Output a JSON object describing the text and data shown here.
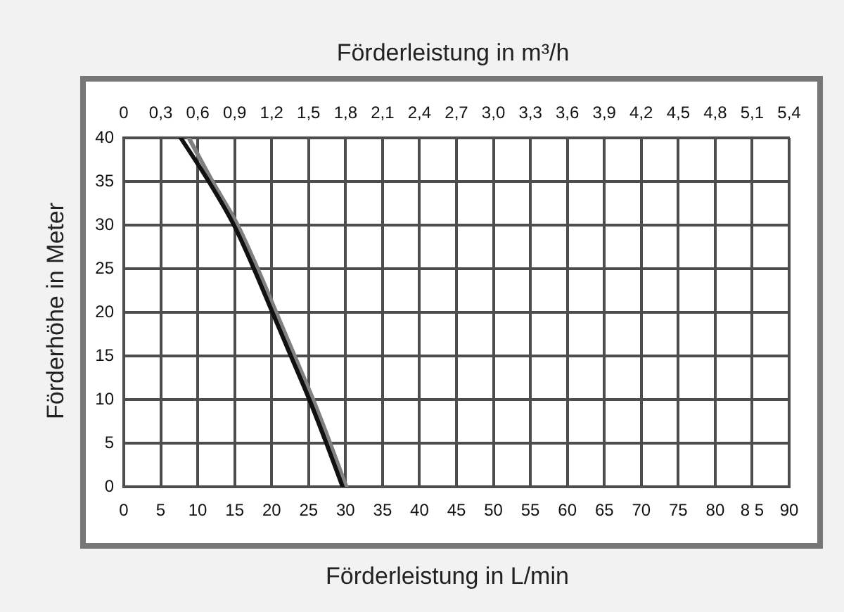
{
  "chart_data": {
    "type": "line",
    "xlabel": "Förderleistung in L/min",
    "x2label": "Förderleistung in m³/h",
    "ylabel": "Förderhöhe in Meter",
    "xlim": [
      0,
      90
    ],
    "xticks": [
      0,
      5,
      10,
      15,
      20,
      25,
      30,
      35,
      40,
      45,
      50,
      55,
      60,
      65,
      70,
      75,
      80,
      {
        "value": 85,
        "label": "8 5"
      },
      90
    ],
    "x2lim": [
      0,
      5.4
    ],
    "x2ticks": [
      0,
      {
        "value": 0.3,
        "label": "0,3"
      },
      {
        "value": 0.6,
        "label": "0,6"
      },
      {
        "value": 0.9,
        "label": "0,9"
      },
      {
        "value": 1.2,
        "label": "1,2"
      },
      {
        "value": 1.5,
        "label": "1,5"
      },
      {
        "value": 1.8,
        "label": "1,8"
      },
      {
        "value": 2.1,
        "label": "2,1"
      },
      {
        "value": 2.4,
        "label": "2,4"
      },
      {
        "value": 2.7,
        "label": "2,7"
      },
      {
        "value": 3,
        "label": "3,0"
      },
      {
        "value": 3.3,
        "label": "3,3"
      },
      {
        "value": 3.6,
        "label": "3,6"
      },
      {
        "value": 3.9,
        "label": "3,9"
      },
      {
        "value": 4.2,
        "label": "4,2"
      },
      {
        "value": 4.5,
        "label": "4,5"
      },
      {
        "value": 4.8,
        "label": "4,8"
      },
      {
        "value": 5.1,
        "label": "5,1"
      },
      {
        "value": 5.4,
        "label": "5,4"
      }
    ],
    "ylim": [
      0,
      40
    ],
    "yticks": [
      0,
      5,
      10,
      15,
      20,
      25,
      30,
      35,
      40
    ],
    "grid": true,
    "legend": false,
    "marker": "none",
    "series": [
      {
        "color": "#808080",
        "x": [
          8.8,
          12,
          15.4,
          18.1,
          20.6,
          23.1,
          25.6,
          27.9,
          30.1
        ],
        "values": [
          40,
          35,
          30,
          25,
          20,
          15,
          10,
          5,
          0
        ]
      },
      {
        "color": "#111111",
        "x": [
          7.7,
          11.5,
          14.9,
          17.6,
          20.1,
          22.6,
          25.1,
          27.4,
          29.6
        ],
        "values": [
          40,
          35,
          30,
          25,
          20,
          15,
          10,
          5,
          0
        ]
      }
    ]
  }
}
